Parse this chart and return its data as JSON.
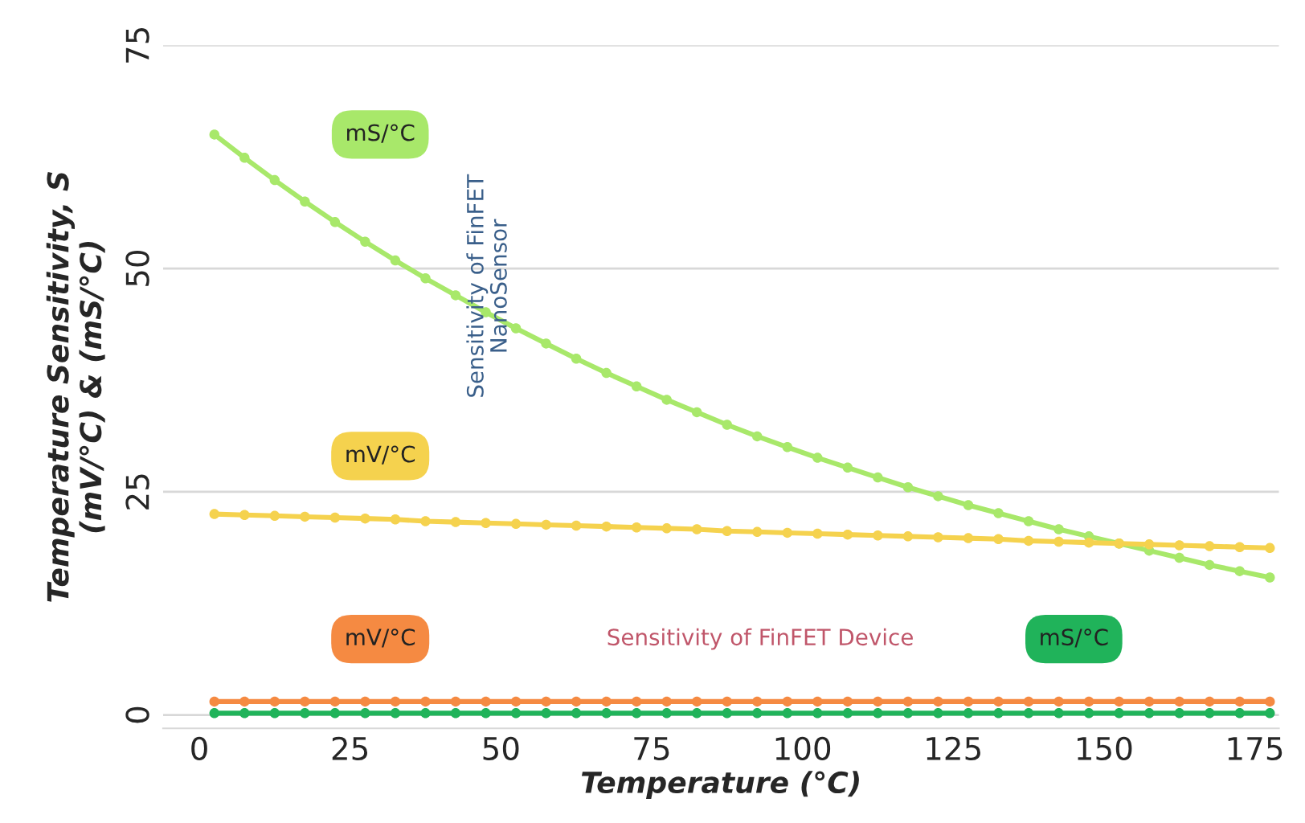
{
  "chart_data": {
    "type": "line",
    "xlabel": "Temperature (°C)",
    "ylabel": "Temperature Sensitivity, S\n(mV/°C) & (mS/°C)",
    "x": [
      2.5,
      7.5,
      12.5,
      17.5,
      22.5,
      27.5,
      32.5,
      37.5,
      42.5,
      47.5,
      52.5,
      57.5,
      62.5,
      67.5,
      72.5,
      77.5,
      82.5,
      87.5,
      92.5,
      97.5,
      102.5,
      107.5,
      112.5,
      117.5,
      122.5,
      127.5,
      132.5,
      137.5,
      142.5,
      147.5,
      152.5,
      157.5,
      162.5,
      167.5,
      172.5,
      177.5
    ],
    "series": [
      {
        "name": "mS/°C",
        "color": "#a8e86a",
        "values": [
          65.0,
          62.4,
          59.9,
          57.5,
          55.2,
          53.0,
          50.9,
          48.9,
          47.0,
          45.1,
          43.3,
          41.6,
          39.9,
          38.3,
          36.8,
          35.3,
          33.9,
          32.5,
          31.2,
          30.0,
          28.8,
          27.7,
          26.6,
          25.5,
          24.5,
          23.5,
          22.6,
          21.7,
          20.8,
          20.0,
          19.2,
          18.4,
          17.6,
          16.8,
          16.1,
          15.4
        ]
      },
      {
        "name": "mV/°C",
        "color": "#f5d24e",
        "values": [
          22.5,
          22.4,
          22.3,
          22.2,
          22.1,
          22.0,
          21.9,
          21.7,
          21.6,
          21.5,
          21.4,
          21.3,
          21.2,
          21.1,
          21.0,
          20.9,
          20.8,
          20.6,
          20.5,
          20.4,
          20.3,
          20.2,
          20.1,
          20.0,
          19.9,
          19.8,
          19.7,
          19.5,
          19.4,
          19.3,
          19.2,
          19.1,
          19.0,
          18.9,
          18.8,
          18.7
        ]
      },
      {
        "name": "mV/°C",
        "color": "#f58a42",
        "values": [
          1.5,
          1.5,
          1.5,
          1.5,
          1.5,
          1.5,
          1.5,
          1.5,
          1.5,
          1.5,
          1.5,
          1.5,
          1.5,
          1.5,
          1.5,
          1.5,
          1.5,
          1.5,
          1.5,
          1.5,
          1.5,
          1.5,
          1.5,
          1.5,
          1.5,
          1.5,
          1.5,
          1.5,
          1.5,
          1.5,
          1.5,
          1.5,
          1.5,
          1.5,
          1.5,
          1.5
        ]
      },
      {
        "name": "mS/°C",
        "color": "#20b35a",
        "values": [
          0.2,
          0.2,
          0.2,
          0.2,
          0.2,
          0.2,
          0.2,
          0.2,
          0.2,
          0.2,
          0.2,
          0.2,
          0.2,
          0.2,
          0.2,
          0.2,
          0.2,
          0.2,
          0.2,
          0.2,
          0.2,
          0.2,
          0.2,
          0.2,
          0.2,
          0.2,
          0.2,
          0.2,
          0.2,
          0.2,
          0.2,
          0.2,
          0.2,
          0.2,
          0.2,
          0.2
        ]
      }
    ],
    "annotations": [
      "Sensitivity of FinFET\nNanoSensor",
      "Sensitivity of FinFET Device"
    ],
    "xlim": [
      -6,
      179
    ],
    "ylim": [
      -1.5,
      75
    ],
    "xticks": [
      0,
      25,
      50,
      75,
      100,
      125,
      150,
      175
    ],
    "yticks": [
      0,
      25,
      50,
      75
    ],
    "grid": "y",
    "marker": "circle",
    "line_style": "solid"
  }
}
